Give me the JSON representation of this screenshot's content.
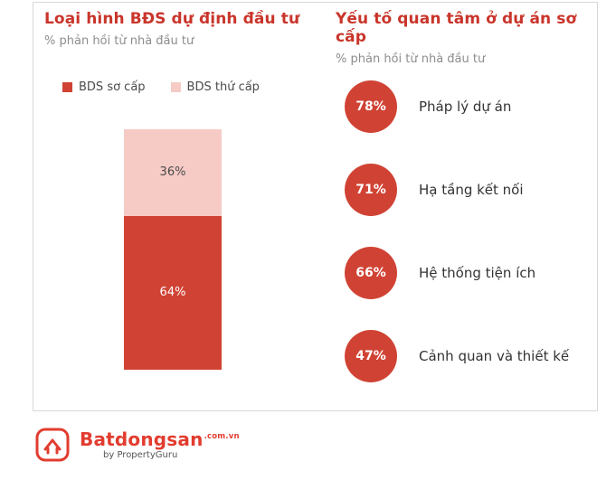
{
  "accent_color": "#c9352b",
  "bar_primary_color": "#d04334",
  "bar_secondary_color": "#f6cbc6",
  "left_panel": {
    "title": "Loại hình BĐS dự định đầu tư",
    "subtitle": "% phản hồi từ nhà đầu tư",
    "legend": [
      {
        "label": "BDS sơ cấp",
        "color": "#d04334"
      },
      {
        "label": "BDS thứ cấp",
        "color": "#f6cbc6"
      }
    ],
    "bar": {
      "primary_label": "64%",
      "secondary_label": "36%"
    }
  },
  "right_panel": {
    "title": "Yếu tố quan tâm ở dự án sơ cấp",
    "subtitle": "% phản hồi từ nhà đầu tư",
    "items": [
      {
        "value": "78%",
        "label": "Pháp lý dự án"
      },
      {
        "value": "71%",
        "label": "Hạ tầng kết nối"
      },
      {
        "value": "66%",
        "label": "Hệ thống tiện ích"
      },
      {
        "value": "47%",
        "label": "Cảnh quan và thiết kế"
      }
    ]
  },
  "footer": {
    "brand": "Batdongsan",
    "brand_suffix": ".com.vn",
    "byline": "by PropertyGuru"
  },
  "chart_data": [
    {
      "type": "bar",
      "stacked": true,
      "title": "Loại hình BĐS dự định đầu tư",
      "subtitle": "% phản hồi từ nhà đầu tư",
      "categories": [
        "Loại hình BĐS dự định đầu tư"
      ],
      "series": [
        {
          "name": "BDS sơ cấp",
          "values": [
            64
          ],
          "color": "#d04334"
        },
        {
          "name": "BDS thứ cấp",
          "values": [
            36
          ],
          "color": "#f6cbc6"
        }
      ],
      "unit": "%",
      "ylim": [
        0,
        100
      ],
      "legend_position": "top",
      "grid": false
    },
    {
      "type": "bar",
      "display": "circle-badges",
      "title": "Yếu tố quan tâm ở dự án sơ cấp",
      "subtitle": "% phản hồi từ nhà đầu tư",
      "categories": [
        "Pháp lý dự án",
        "Hạ tầng kết nối",
        "Hệ thống tiện ích",
        "Cảnh quan và thiết kế"
      ],
      "values": [
        78,
        71,
        66,
        47
      ],
      "unit": "%",
      "grid": false
    }
  ]
}
